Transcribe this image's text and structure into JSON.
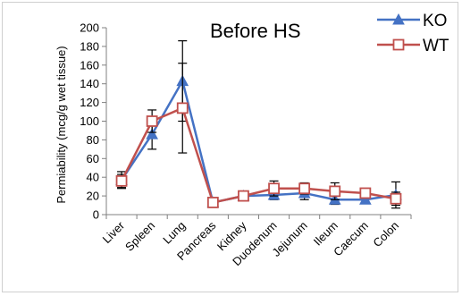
{
  "chart_data": {
    "type": "line",
    "title": "Before HS",
    "xlabel": "",
    "ylabel": "Permiability (mcg/g wet tissue)",
    "ylim": [
      0,
      200
    ],
    "yticks": [
      0,
      20,
      40,
      60,
      80,
      100,
      120,
      140,
      160,
      180,
      200
    ],
    "categories": [
      "Liver",
      "Spleen",
      "Lung",
      "Pancreas",
      "Kidney",
      "Duodenum",
      "Jejunum",
      "Ileum",
      "Caecum",
      "Colon"
    ],
    "grid": false,
    "legend_position": "top-right",
    "series": [
      {
        "name": "KO",
        "color": "#4472C4",
        "marker": "triangle",
        "values": [
          37,
          86,
          143,
          13,
          20,
          21,
          23,
          16,
          16,
          21
        ],
        "errors": [
          9,
          16,
          43,
          2,
          5,
          5,
          7,
          5,
          4,
          14
        ]
      },
      {
        "name": "WT",
        "color": "#C0504D",
        "marker": "square",
        "values": [
          36,
          100,
          114,
          13,
          20,
          28,
          28,
          25,
          23,
          17
        ],
        "errors": [
          7,
          12,
          48,
          2,
          5,
          8,
          6,
          9,
          5,
          7
        ]
      }
    ]
  }
}
